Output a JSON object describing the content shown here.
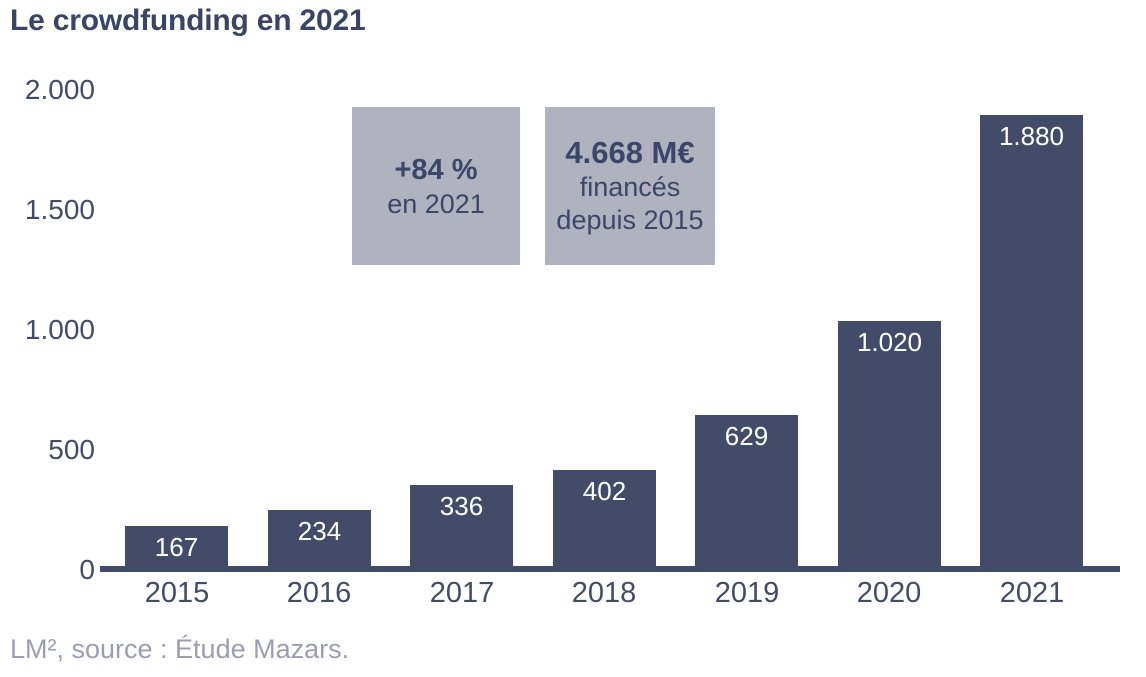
{
  "title": "Le crowdfunding en 2021",
  "footer": "LM², source : Étude Mazars.",
  "colors": {
    "bar": "#424b68",
    "text_dark": "#3a4464",
    "annotation_box_bg": "#b1b2c0",
    "bar_value_label": "#ffffff",
    "footer_text": "#9c9db3"
  },
  "annotations": [
    {
      "headline": "+84 %",
      "lines": [
        "en 2021"
      ]
    },
    {
      "headline": "4.668 M€",
      "lines": [
        "financés",
        "depuis 2015"
      ]
    }
  ],
  "chart_data": {
    "type": "bar",
    "title": "Le crowdfunding en 2021",
    "categories": [
      "2015",
      "2016",
      "2017",
      "2018",
      "2019",
      "2020",
      "2021"
    ],
    "values": [
      167,
      234,
      336,
      402,
      629,
      1020,
      1880
    ],
    "value_labels": [
      "167",
      "234",
      "336",
      "402",
      "629",
      "1.020",
      "1.880"
    ],
    "xlabel": "",
    "ylabel": "",
    "ylim": [
      0,
      2000
    ],
    "yticks": [
      0,
      500,
      1000,
      1500,
      2000
    ],
    "ytick_labels": [
      "0",
      "500",
      "1.000",
      "1.500",
      "2.000"
    ],
    "grid": false,
    "legend": null,
    "bar_color": "#424b68",
    "annotations_text": [
      "+84 % en 2021",
      "4.668 M€ financés depuis 2015"
    ],
    "source": "LM², source : Étude Mazars."
  }
}
